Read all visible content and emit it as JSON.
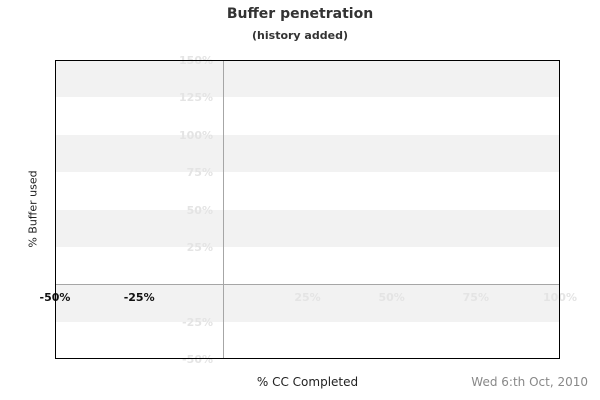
{
  "chart_data": {
    "type": "line",
    "title": "Buffer penetration",
    "subtitle": "(history added)",
    "xlabel": "% CC Completed",
    "ylabel": "% Buffer used",
    "footer_date": "Wed 6:th Oct, 2010",
    "xlim": [
      -50,
      100
    ],
    "ylim": [
      -50,
      150
    ],
    "x_ticks": [
      {
        "value": -50,
        "label": "-50%",
        "emphasis": true
      },
      {
        "value": -25,
        "label": "-25%",
        "emphasis": true
      },
      {
        "value": 25,
        "label": "25%",
        "emphasis": false
      },
      {
        "value": 50,
        "label": "50%",
        "emphasis": false
      },
      {
        "value": 75,
        "label": "75%",
        "emphasis": false
      },
      {
        "value": 100,
        "label": "100%",
        "emphasis": false
      }
    ],
    "y_ticks": [
      {
        "value": 150,
        "label": "150%"
      },
      {
        "value": 125,
        "label": "125%"
      },
      {
        "value": 100,
        "label": "100%"
      },
      {
        "value": 75,
        "label": "75%"
      },
      {
        "value": 50,
        "label": "50%"
      },
      {
        "value": 25,
        "label": "25%"
      },
      {
        "value": -25,
        "label": "-25%"
      },
      {
        "value": -50,
        "label": "-50%"
      }
    ],
    "series": [],
    "grid": {
      "bands": true,
      "band_interval": 25,
      "zero_lines": true,
      "legend": "none"
    },
    "colors": {
      "band": "#f2f2f2",
      "faint_label": "#e4e4e4",
      "emphasis_label": "#111111",
      "zero_line": "#a6a6a6",
      "border": "#000000",
      "text": "#333333",
      "axis_text": "#222222",
      "date_text": "#888888",
      "background": "#ffffff"
    }
  }
}
